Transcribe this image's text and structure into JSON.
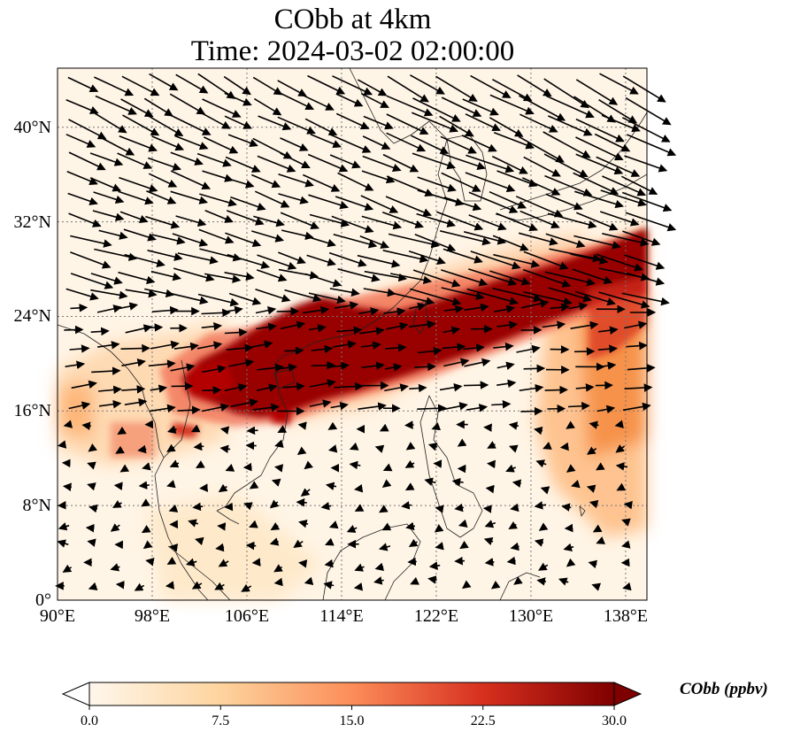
{
  "title": {
    "line1": "CObb at 4km",
    "line2": "Time: 2024-03-02 02:00:00"
  },
  "map": {
    "extent": {
      "lon_min": 90,
      "lon_max": 139.8,
      "lat_min": 0,
      "lat_max": 45
    },
    "lat_ticks": [
      {
        "value": 40,
        "label": "40°N"
      },
      {
        "value": 32,
        "label": "32°N"
      },
      {
        "value": 24,
        "label": "24°N"
      },
      {
        "value": 16,
        "label": "16°N"
      },
      {
        "value": 8,
        "label": "8°N"
      },
      {
        "value": 0,
        "label": "0°"
      }
    ],
    "lon_ticks": [
      {
        "value": 90,
        "label": "90°E"
      },
      {
        "value": 98,
        "label": "98°E"
      },
      {
        "value": 106,
        "label": "106°E"
      },
      {
        "value": 114,
        "label": "114°E"
      },
      {
        "value": 122,
        "label": "122°E"
      },
      {
        "value": 130,
        "label": "130°E"
      },
      {
        "value": 138,
        "label": "138°E"
      }
    ],
    "gridlines": true,
    "background_color": "#fff5e6",
    "overlays": [
      "coastlines",
      "wind-vectors",
      "CObb-concentration-field"
    ]
  },
  "colorbar": {
    "label": "CObb (ppbv)",
    "ticks": [
      "0.0",
      "7.5",
      "15.0",
      "22.5",
      "30.0"
    ],
    "min": 0,
    "max": 30,
    "extend": "both",
    "colormap": "OrRd",
    "colors": [
      "#fff7ec",
      "#fdd49e",
      "#fc8d59",
      "#d7301f",
      "#7f0000"
    ]
  }
}
